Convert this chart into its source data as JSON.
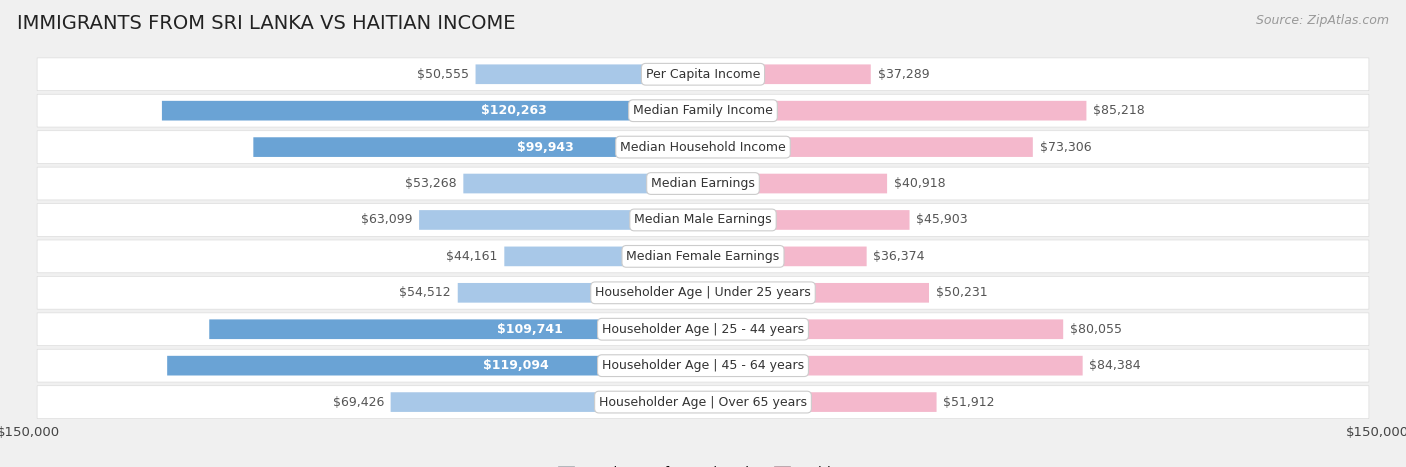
{
  "title": "IMMIGRANTS FROM SRI LANKA VS HAITIAN INCOME",
  "source": "Source: ZipAtlas.com",
  "categories": [
    "Per Capita Income",
    "Median Family Income",
    "Median Household Income",
    "Median Earnings",
    "Median Male Earnings",
    "Median Female Earnings",
    "Householder Age | Under 25 years",
    "Householder Age | 25 - 44 years",
    "Householder Age | 45 - 64 years",
    "Householder Age | Over 65 years"
  ],
  "sri_lanka_values": [
    50555,
    120263,
    99943,
    53268,
    63099,
    44161,
    54512,
    109741,
    119094,
    69426
  ],
  "haitian_values": [
    37289,
    85218,
    73306,
    40918,
    45903,
    36374,
    50231,
    80055,
    84384,
    51912
  ],
  "sri_lanka_labels": [
    "$50,555",
    "$120,263",
    "$99,943",
    "$53,268",
    "$63,099",
    "$44,161",
    "$54,512",
    "$109,741",
    "$119,094",
    "$69,426"
  ],
  "haitian_labels": [
    "$37,289",
    "$85,218",
    "$73,306",
    "$40,918",
    "$45,903",
    "$36,374",
    "$50,231",
    "$80,055",
    "$84,384",
    "$51,912"
  ],
  "sl_label_inside": [
    false,
    true,
    true,
    false,
    false,
    false,
    false,
    true,
    true,
    false
  ],
  "ht_label_inside": [
    false,
    false,
    false,
    false,
    false,
    false,
    false,
    false,
    false,
    false
  ],
  "max_value": 150000,
  "sl_color_light": "#a8c8e8",
  "sl_color_dark": "#6aa3d5",
  "ht_color_light": "#f4b8cc",
  "ht_color_dark": "#e8608a",
  "bg_color": "#f0f0f0",
  "row_color": "#fafafa",
  "row_alt_color": "#f2f2f2",
  "title_fontsize": 14,
  "source_fontsize": 9,
  "val_fontsize": 9,
  "cat_fontsize": 9
}
